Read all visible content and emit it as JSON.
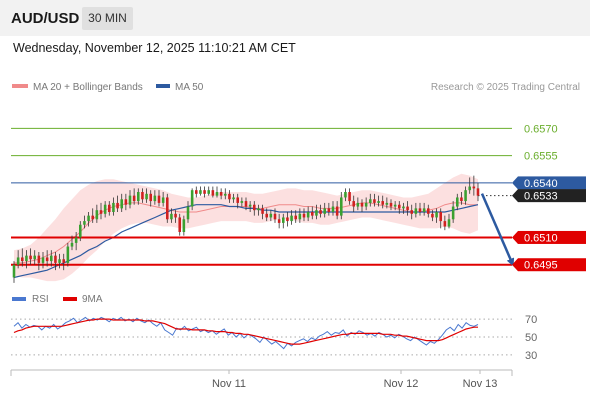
{
  "header": {
    "pair": "AUD/USD",
    "timeframe": "30 MIN"
  },
  "datetime": "Wednesday, November 12, 2025 11:10:21 AM CET",
  "colors": {
    "bollinger": "#f08a8a",
    "ma50": "#2d5aa0",
    "resistance": "#6aae2c",
    "support": "#e00000",
    "pivot": "#2d5aa0",
    "rsi": "#4a78d0",
    "rsi_ma": "#e00000",
    "bull_candle": "#3aa030",
    "bear_candle": "#d02020"
  },
  "legend": {
    "bollinger_label": "MA 20 + Bollinger Bands",
    "ma50_label": "MA 50",
    "credit": "Research © 2025 Trading Central"
  },
  "rsi_legend": {
    "rsi_label": "RSI",
    "ma_label": "9MA"
  },
  "chart_data": {
    "type": "candlestick",
    "y_range": [
      0.648,
      0.659
    ],
    "levels": [
      {
        "value": 0.657,
        "label": "0.6570",
        "kind": "resistance"
      },
      {
        "value": 0.6555,
        "label": "0.6555",
        "kind": "resistance"
      },
      {
        "value": 0.654,
        "label": "0.6540",
        "kind": "pivot"
      },
      {
        "value": 0.651,
        "label": "0.6510",
        "kind": "support"
      },
      {
        "value": 0.6495,
        "label": "0.6495",
        "kind": "support"
      }
    ],
    "last_price": {
      "value": 0.6533,
      "label": "0.6533"
    },
    "projection": {
      "from": 0.6533,
      "to": 0.6495
    },
    "x_ticks": [
      "Nov 11",
      "Nov 12",
      "Nov 13"
    ],
    "candles": [
      [
        0.6488,
        0.6495,
        0.6497,
        0.6485
      ],
      [
        0.6495,
        0.6499,
        0.6503,
        0.6493
      ],
      [
        0.6499,
        0.6497,
        0.6504,
        0.6494
      ],
      [
        0.6497,
        0.65,
        0.6503,
        0.6493
      ],
      [
        0.65,
        0.6498,
        0.6504,
        0.6495
      ],
      [
        0.6498,
        0.65,
        0.6503,
        0.6495
      ],
      [
        0.65,
        0.6496,
        0.6502,
        0.6492
      ],
      [
        0.6496,
        0.6499,
        0.6502,
        0.6493
      ],
      [
        0.6499,
        0.6497,
        0.6503,
        0.6494
      ],
      [
        0.6497,
        0.65,
        0.6503,
        0.6494
      ],
      [
        0.65,
        0.6496,
        0.6502,
        0.6492
      ],
      [
        0.6496,
        0.6498,
        0.6501,
        0.6493
      ],
      [
        0.6498,
        0.6496,
        0.6501,
        0.6492
      ],
      [
        0.6496,
        0.6505,
        0.6507,
        0.6494
      ],
      [
        0.6505,
        0.6507,
        0.6511,
        0.6503
      ],
      [
        0.6507,
        0.651,
        0.6513,
        0.6503
      ],
      [
        0.651,
        0.6517,
        0.6519,
        0.6508
      ],
      [
        0.6517,
        0.6519,
        0.6522,
        0.6515
      ],
      [
        0.6519,
        0.6522,
        0.6524,
        0.6516
      ],
      [
        0.6522,
        0.652,
        0.6526,
        0.6518
      ],
      [
        0.652,
        0.6525,
        0.6528,
        0.6518
      ],
      [
        0.6525,
        0.6523,
        0.6529,
        0.652
      ],
      [
        0.6523,
        0.6528,
        0.653,
        0.6521
      ],
      [
        0.6528,
        0.6524,
        0.653,
        0.6522
      ],
      [
        0.6524,
        0.6529,
        0.6532,
        0.6522
      ],
      [
        0.6529,
        0.6526,
        0.6533,
        0.6524
      ],
      [
        0.6526,
        0.6531,
        0.6534,
        0.6524
      ],
      [
        0.6531,
        0.6528,
        0.6534,
        0.6525
      ],
      [
        0.6528,
        0.6533,
        0.6536,
        0.6526
      ],
      [
        0.6533,
        0.653,
        0.6537,
        0.6528
      ],
      [
        0.653,
        0.6535,
        0.6537,
        0.6528
      ],
      [
        0.6535,
        0.6531,
        0.6537,
        0.6529
      ],
      [
        0.6531,
        0.6534,
        0.6537,
        0.6529
      ],
      [
        0.6534,
        0.653,
        0.6536,
        0.6527
      ],
      [
        0.653,
        0.6533,
        0.6536,
        0.6528
      ],
      [
        0.6533,
        0.6529,
        0.6536,
        0.6527
      ],
      [
        0.6529,
        0.6532,
        0.6535,
        0.6527
      ],
      [
        0.6532,
        0.652,
        0.6534,
        0.6518
      ],
      [
        0.652,
        0.6523,
        0.6526,
        0.6518
      ],
      [
        0.6523,
        0.6521,
        0.6525,
        0.6518
      ],
      [
        0.6521,
        0.6513,
        0.6523,
        0.6511
      ],
      [
        0.6513,
        0.652,
        0.6522,
        0.6511
      ],
      [
        0.652,
        0.6527,
        0.653,
        0.6518
      ],
      [
        0.6527,
        0.6536,
        0.6537,
        0.6525
      ],
      [
        0.6536,
        0.6534,
        0.6538,
        0.6532
      ],
      [
        0.6534,
        0.6536,
        0.6538,
        0.6533
      ],
      [
        0.6536,
        0.6534,
        0.6538,
        0.6532
      ],
      [
        0.6534,
        0.6536,
        0.6538,
        0.6533
      ],
      [
        0.6536,
        0.6533,
        0.6538,
        0.6532
      ],
      [
        0.6533,
        0.6535,
        0.6538,
        0.6532
      ],
      [
        0.6535,
        0.6533,
        0.6537,
        0.6531
      ],
      [
        0.6533,
        0.6534,
        0.6537,
        0.6531
      ],
      [
        0.6534,
        0.6531,
        0.6536,
        0.6529
      ],
      [
        0.6531,
        0.6532,
        0.6534,
        0.6529
      ],
      [
        0.6532,
        0.6529,
        0.6534,
        0.6526
      ],
      [
        0.6529,
        0.653,
        0.6532,
        0.6527
      ],
      [
        0.653,
        0.6527,
        0.6532,
        0.6525
      ],
      [
        0.6527,
        0.6528,
        0.653,
        0.6524
      ],
      [
        0.6528,
        0.6525,
        0.653,
        0.6522
      ],
      [
        0.6525,
        0.6526,
        0.6528,
        0.6522
      ],
      [
        0.6526,
        0.6523,
        0.6528,
        0.652
      ],
      [
        0.6523,
        0.6521,
        0.6526,
        0.6519
      ],
      [
        0.6521,
        0.6523,
        0.6525,
        0.6519
      ],
      [
        0.6523,
        0.652,
        0.6526,
        0.6518
      ],
      [
        0.652,
        0.6518,
        0.6523,
        0.6515
      ],
      [
        0.6518,
        0.6521,
        0.6523,
        0.6515
      ],
      [
        0.6521,
        0.6519,
        0.6524,
        0.6516
      ],
      [
        0.6519,
        0.6522,
        0.6525,
        0.6517
      ],
      [
        0.6522,
        0.652,
        0.6525,
        0.6518
      ],
      [
        0.652,
        0.6523,
        0.6526,
        0.6518
      ],
      [
        0.6523,
        0.6521,
        0.6526,
        0.6519
      ],
      [
        0.6521,
        0.6524,
        0.6527,
        0.6519
      ],
      [
        0.6524,
        0.6522,
        0.6527,
        0.652
      ],
      [
        0.6522,
        0.6525,
        0.6528,
        0.652
      ],
      [
        0.6525,
        0.6523,
        0.6528,
        0.6521
      ],
      [
        0.6523,
        0.6526,
        0.6529,
        0.6521
      ],
      [
        0.6526,
        0.6524,
        0.6529,
        0.6522
      ],
      [
        0.6524,
        0.6527,
        0.653,
        0.6522
      ],
      [
        0.6527,
        0.6522,
        0.653,
        0.652
      ],
      [
        0.6522,
        0.6532,
        0.6535,
        0.652
      ],
      [
        0.6532,
        0.6535,
        0.6537,
        0.653
      ],
      [
        0.6535,
        0.653,
        0.6537,
        0.6528
      ],
      [
        0.653,
        0.6527,
        0.6533,
        0.6524
      ],
      [
        0.6527,
        0.6529,
        0.6532,
        0.6525
      ],
      [
        0.6529,
        0.6527,
        0.6531,
        0.6524
      ],
      [
        0.6527,
        0.6529,
        0.6532,
        0.6525
      ],
      [
        0.6529,
        0.6531,
        0.6534,
        0.6527
      ],
      [
        0.6531,
        0.6529,
        0.6534,
        0.6527
      ],
      [
        0.6529,
        0.653,
        0.6533,
        0.6527
      ],
      [
        0.653,
        0.6528,
        0.6533,
        0.6526
      ],
      [
        0.6528,
        0.6529,
        0.6532,
        0.6526
      ],
      [
        0.6529,
        0.6527,
        0.6531,
        0.6525
      ],
      [
        0.6527,
        0.6528,
        0.653,
        0.6525
      ],
      [
        0.6528,
        0.6526,
        0.653,
        0.6523
      ],
      [
        0.6526,
        0.6527,
        0.6529,
        0.6523
      ],
      [
        0.6527,
        0.6525,
        0.653,
        0.6522
      ],
      [
        0.6525,
        0.6523,
        0.6528,
        0.652
      ],
      [
        0.6523,
        0.6526,
        0.6529,
        0.6521
      ],
      [
        0.6526,
        0.6524,
        0.6529,
        0.6522
      ],
      [
        0.6524,
        0.6526,
        0.6529,
        0.6522
      ],
      [
        0.6526,
        0.6523,
        0.6528,
        0.6521
      ],
      [
        0.6523,
        0.6521,
        0.6525,
        0.6519
      ],
      [
        0.6521,
        0.6524,
        0.6526,
        0.6518
      ],
      [
        0.6524,
        0.6519,
        0.6526,
        0.6515
      ],
      [
        0.6519,
        0.6516,
        0.6522,
        0.6514
      ],
      [
        0.6516,
        0.652,
        0.6523,
        0.6515
      ],
      [
        0.652,
        0.6527,
        0.653,
        0.6518
      ],
      [
        0.6527,
        0.6532,
        0.6534,
        0.6525
      ],
      [
        0.6532,
        0.653,
        0.6535,
        0.6528
      ],
      [
        0.653,
        0.6536,
        0.6538,
        0.6528
      ],
      [
        0.6536,
        0.6538,
        0.6543,
        0.6534
      ],
      [
        0.6538,
        0.6537,
        0.6544,
        0.6533
      ],
      [
        0.6537,
        0.6533,
        0.654,
        0.653
      ]
    ],
    "bollinger": {
      "mid": [
        0.6496,
        0.6496,
        0.6497,
        0.6498,
        0.65,
        0.6502,
        0.6505,
        0.6509,
        0.6513,
        0.6518,
        0.6522,
        0.6525,
        0.6527,
        0.6528,
        0.6529,
        0.6529,
        0.6528,
        0.6527,
        0.6526,
        0.6525,
        0.6524,
        0.6524,
        0.6524,
        0.6525,
        0.6526,
        0.6527,
        0.6527,
        0.6527,
        0.6527,
        0.6526,
        0.6526,
        0.6527,
        0.6528,
        0.6528,
        0.6528,
        0.6527,
        0.6527,
        0.6526,
        0.6526,
        0.6526,
        0.6527,
        0.6528,
        0.6529,
        0.6529,
        0.6528,
        0.6527,
        0.6526,
        0.6525,
        0.6524,
        0.6524,
        0.6525,
        0.6526,
        0.6528,
        0.6529,
        0.6529,
        0.6528,
        0.6528
      ],
      "upper": [
        0.6503,
        0.6504,
        0.6506,
        0.651,
        0.6515,
        0.652,
        0.6526,
        0.6531,
        0.6536,
        0.6539,
        0.6541,
        0.6542,
        0.6542,
        0.6541,
        0.654,
        0.6539,
        0.6538,
        0.6537,
        0.6536,
        0.6534,
        0.6533,
        0.6532,
        0.6532,
        0.6533,
        0.6534,
        0.6535,
        0.6535,
        0.6535,
        0.6535,
        0.6534,
        0.6534,
        0.6535,
        0.6536,
        0.6537,
        0.6537,
        0.6536,
        0.6536,
        0.6535,
        0.6534,
        0.6533,
        0.6534,
        0.6535,
        0.6536,
        0.6536,
        0.6535,
        0.6534,
        0.6533,
        0.6532,
        0.6532,
        0.6533,
        0.6534,
        0.6537,
        0.654,
        0.6543,
        0.6545,
        0.6544,
        0.6542
      ],
      "lower": [
        0.6489,
        0.6488,
        0.6488,
        0.6487,
        0.6486,
        0.6486,
        0.6487,
        0.649,
        0.6494,
        0.6499,
        0.6503,
        0.6508,
        0.6512,
        0.6515,
        0.6517,
        0.6518,
        0.6518,
        0.6517,
        0.6516,
        0.6516,
        0.6515,
        0.6515,
        0.6516,
        0.6517,
        0.6518,
        0.6519,
        0.6519,
        0.6519,
        0.6519,
        0.6518,
        0.6518,
        0.6519,
        0.652,
        0.652,
        0.6519,
        0.6518,
        0.6518,
        0.6517,
        0.6517,
        0.6518,
        0.6519,
        0.652,
        0.6521,
        0.6521,
        0.652,
        0.6519,
        0.6518,
        0.6517,
        0.6516,
        0.6515,
        0.6515,
        0.6515,
        0.6516,
        0.6515,
        0.6513,
        0.6512,
        0.6514
      ]
    },
    "ma50": [
      0.6488,
      0.6489,
      0.649,
      0.6491,
      0.6492,
      0.6494,
      0.6496,
      0.6498,
      0.65,
      0.6503,
      0.6505,
      0.6508,
      0.651,
      0.6513,
      0.6515,
      0.6517,
      0.6519,
      0.6521,
      0.6523,
      0.6525,
      0.6526,
      0.6527,
      0.6528,
      0.6528,
      0.6528,
      0.6528,
      0.6527,
      0.6527,
      0.6526,
      0.6526,
      0.6525,
      0.6525,
      0.6524,
      0.6524,
      0.6524,
      0.6524,
      0.6524,
      0.6524,
      0.6524,
      0.6524,
      0.6524,
      0.6524,
      0.6524,
      0.6524,
      0.6524,
      0.6524,
      0.6524,
      0.6524,
      0.6524,
      0.6524,
      0.6524,
      0.6524,
      0.6524,
      0.6525,
      0.6526,
      0.6527,
      0.6528
    ],
    "rsi_panel": {
      "y_range": [
        22,
        78
      ],
      "levels": [
        {
          "value": 70,
          "label": "70"
        },
        {
          "value": 50,
          "label": "50"
        },
        {
          "value": 30,
          "label": "30"
        }
      ],
      "rsi": [
        62,
        66,
        60,
        64,
        61,
        63,
        62,
        58,
        62,
        60,
        64,
        59,
        62,
        66,
        68,
        71,
        66,
        69,
        72,
        68,
        71,
        69,
        72,
        70,
        67,
        71,
        69,
        72,
        68,
        70,
        67,
        71,
        68,
        66,
        69,
        65,
        62,
        66,
        58,
        55,
        52,
        60,
        58,
        62,
        57,
        59,
        61,
        56,
        58,
        55,
        57,
        53,
        56,
        59,
        52,
        55,
        50,
        54,
        49,
        53,
        51,
        48,
        44,
        50,
        46,
        42,
        45,
        41,
        37,
        43,
        40,
        44,
        46,
        48,
        45,
        49,
        47,
        51,
        53,
        56,
        52,
        55,
        54,
        58,
        51,
        55,
        53,
        57,
        55,
        52,
        54,
        51,
        55,
        53,
        50,
        52,
        49,
        53,
        51,
        48,
        46,
        50,
        47,
        44,
        41,
        45,
        43,
        47,
        52,
        58,
        61,
        57,
        64,
        60,
        66,
        63,
        62,
        64
      ],
      "ma": [
        55,
        57,
        58,
        60,
        61,
        62,
        62,
        62,
        62,
        62,
        62,
        62,
        62,
        63,
        64,
        65,
        66,
        67,
        68,
        69,
        69,
        70,
        70,
        70,
        70,
        69,
        69,
        69,
        69,
        69,
        69,
        69,
        69,
        68,
        68,
        68,
        67,
        66,
        65,
        63,
        61,
        59,
        59,
        59,
        59,
        58,
        58,
        58,
        58,
        57,
        57,
        56,
        56,
        56,
        55,
        55,
        54,
        54,
        53,
        53,
        52,
        51,
        50,
        49,
        48,
        47,
        46,
        45,
        44,
        43,
        42,
        42,
        42,
        43,
        44,
        45,
        46,
        47,
        48,
        49,
        50,
        51,
        52,
        53,
        53,
        54,
        54,
        54,
        54,
        54,
        54,
        54,
        54,
        53,
        53,
        53,
        52,
        52,
        51,
        51,
        50,
        49,
        48,
        47,
        46,
        46,
        46,
        46,
        47,
        49,
        51,
        53,
        55,
        57,
        59,
        60,
        61,
        61
      ]
    }
  }
}
